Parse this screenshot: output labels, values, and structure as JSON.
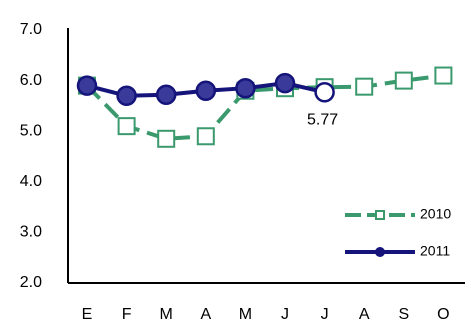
{
  "chart_data": {
    "type": "line",
    "categories": [
      "E",
      "F",
      "M",
      "A",
      "M",
      "J",
      "J",
      "A",
      "S",
      "O"
    ],
    "series": [
      {
        "name": "2010",
        "color": "#3a9a6e",
        "values": [
          5.9,
          5.1,
          4.85,
          4.9,
          5.8,
          5.85,
          5.87,
          5.88,
          6.0,
          6.1
        ]
      },
      {
        "name": "2011",
        "color": "#14147a",
        "values": [
          5.9,
          5.7,
          5.72,
          5.8,
          5.85,
          5.95,
          5.77,
          null,
          null,
          null
        ],
        "value_labels": [
          null,
          null,
          null,
          null,
          null,
          null,
          "5.77",
          null,
          null,
          null
        ]
      }
    ],
    "ylim": [
      2.0,
      7.0
    ],
    "yticks": [
      {
        "value": 2.0,
        "label": "2.0"
      },
      {
        "value": 3.0,
        "label": "3.0"
      },
      {
        "value": 4.0,
        "label": "4.0"
      },
      {
        "value": 5.0,
        "label": "5.0"
      },
      {
        "value": 6.0,
        "label": "6.0"
      },
      {
        "value": 7.0,
        "label": "7.0"
      }
    ],
    "grid": false,
    "legend": "lower right"
  }
}
